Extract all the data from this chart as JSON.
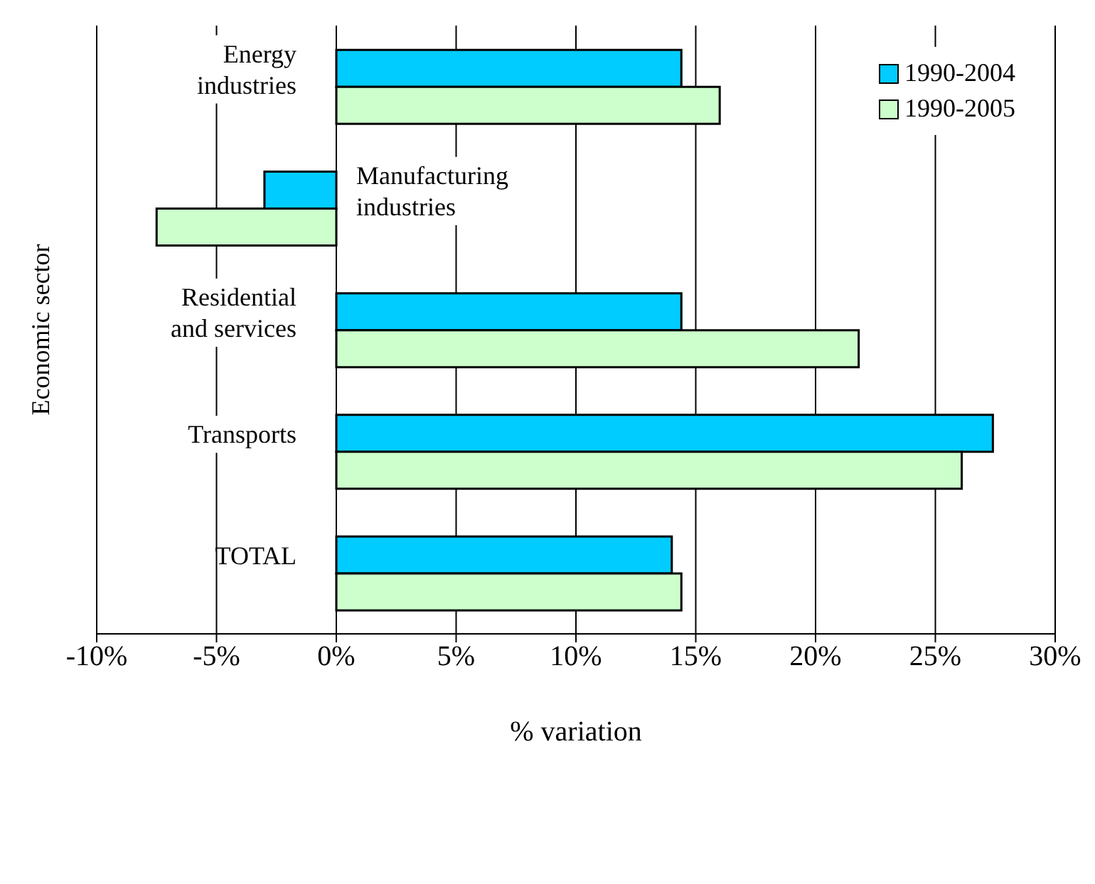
{
  "chart_data": {
    "type": "bar",
    "orientation": "horizontal",
    "xlabel": "% variation",
    "ylabel": "Economic sector",
    "categories": [
      "Energy industries",
      "Manufacturing industries",
      "Residential and services",
      "Transports",
      "TOTAL"
    ],
    "series": [
      {
        "name": "1990-2004",
        "color": "#00ccff",
        "values": [
          14.4,
          -3.0,
          14.4,
          27.4,
          14.0
        ]
      },
      {
        "name": "1990-2005",
        "color": "#ccffcc",
        "values": [
          16.0,
          -7.5,
          21.8,
          26.1,
          14.4
        ]
      }
    ],
    "xlim": [
      -10,
      30
    ],
    "xticks": [
      {
        "value": -10,
        "label": "-10%"
      },
      {
        "value": -5,
        "label": "-5%"
      },
      {
        "value": 0,
        "label": "0%"
      },
      {
        "value": 5,
        "label": "5%"
      },
      {
        "value": 10,
        "label": "10%"
      },
      {
        "value": 15,
        "label": "15%"
      },
      {
        "value": 20,
        "label": "20%"
      },
      {
        "value": 25,
        "label": "25%"
      },
      {
        "value": 30,
        "label": "30%"
      }
    ],
    "grid": "x",
    "legend": "top right"
  }
}
